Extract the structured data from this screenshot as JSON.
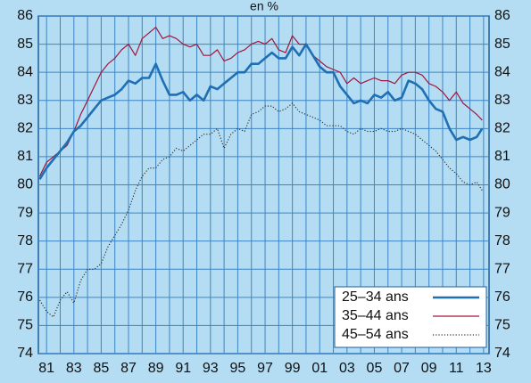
{
  "chart_data": {
    "type": "line",
    "subtitle": "en %",
    "x": [
      1980.5,
      1981,
      1981.5,
      1982,
      1982.5,
      1983,
      1983.5,
      1984,
      1984.5,
      1985,
      1985.5,
      1986,
      1986.5,
      1987,
      1987.5,
      1988,
      1988.5,
      1989,
      1989.5,
      1990,
      1990.5,
      1991,
      1991.5,
      1992,
      1992.5,
      1993,
      1993.5,
      1994,
      1994.5,
      1995,
      1995.5,
      1996,
      1996.5,
      1997,
      1997.5,
      1998,
      1998.5,
      1999,
      1999.5,
      2000,
      2000.5,
      2001,
      2001.5,
      2002,
      2002.5,
      2003,
      2003.5,
      2004,
      2004.5,
      2005,
      2005.5,
      2006,
      2006.5,
      2007,
      2007.5,
      2008,
      2008.5,
      2009,
      2009.5,
      2010,
      2010.5,
      2011,
      2011.5,
      2012,
      2012.5,
      2012.9
    ],
    "series": [
      {
        "name": "25–34 ans",
        "color": "#1f6fb5",
        "style": "solid-thick",
        "values": [
          80.2,
          80.6,
          80.9,
          81.2,
          81.5,
          81.9,
          82.1,
          82.4,
          82.7,
          83.0,
          83.1,
          83.2,
          83.4,
          83.7,
          83.6,
          83.8,
          83.8,
          84.3,
          83.7,
          83.2,
          83.2,
          83.3,
          83.0,
          83.2,
          83.0,
          83.5,
          83.4,
          83.6,
          83.8,
          84.0,
          84.0,
          84.3,
          84.3,
          84.5,
          84.7,
          84.5,
          84.5,
          84.9,
          84.6,
          85.0,
          84.6,
          84.2,
          84.0,
          84.0,
          83.5,
          83.2,
          82.9,
          83.0,
          82.9,
          83.2,
          83.1,
          83.3,
          83.0,
          83.1,
          83.7,
          83.6,
          83.4,
          83.0,
          82.7,
          82.6,
          82.0,
          81.6,
          81.7,
          81.6,
          81.7,
          82.0
        ]
      },
      {
        "name": "35–44 ans",
        "color": "#a0163c",
        "style": "solid",
        "values": [
          80.3,
          80.8,
          81.0,
          81.2,
          81.4,
          81.9,
          82.5,
          83.0,
          83.5,
          84.0,
          84.3,
          84.5,
          84.8,
          85.0,
          84.6,
          85.2,
          85.4,
          85.6,
          85.2,
          85.3,
          85.2,
          85.0,
          84.9,
          85.0,
          84.6,
          84.6,
          84.8,
          84.4,
          84.5,
          84.7,
          84.8,
          85.0,
          85.1,
          85.0,
          85.2,
          84.8,
          84.7,
          85.3,
          85.0,
          85.0,
          84.6,
          84.4,
          84.2,
          84.1,
          84.0,
          83.6,
          83.8,
          83.6,
          83.7,
          83.8,
          83.7,
          83.7,
          83.6,
          83.9,
          84.0,
          84.0,
          83.9,
          83.6,
          83.5,
          83.3,
          83.0,
          83.3,
          82.9,
          82.7,
          82.5,
          82.3
        ]
      },
      {
        "name": "45–54 ans",
        "color": "#333333",
        "style": "dotted",
        "values": [
          75.9,
          75.5,
          75.3,
          75.9,
          76.2,
          75.8,
          76.6,
          77.0,
          77.0,
          77.2,
          77.8,
          78.2,
          78.6,
          79.1,
          79.8,
          80.3,
          80.6,
          80.6,
          80.9,
          81.0,
          81.3,
          81.2,
          81.4,
          81.6,
          81.8,
          81.8,
          82.0,
          81.3,
          81.8,
          82.0,
          81.9,
          82.5,
          82.6,
          82.8,
          82.8,
          82.6,
          82.7,
          82.9,
          82.6,
          82.5,
          82.4,
          82.3,
          82.1,
          82.1,
          82.1,
          81.9,
          81.8,
          82.0,
          81.9,
          81.9,
          82.0,
          81.9,
          81.9,
          82.0,
          81.9,
          81.8,
          81.6,
          81.4,
          81.2,
          80.9,
          80.6,
          80.4,
          80.1,
          80.0,
          80.1,
          79.8
        ]
      }
    ],
    "xlim": [
      1980.4,
      2013.4
    ],
    "xticks": [
      {
        "value": 1981,
        "label": "81"
      },
      {
        "value": 1983,
        "label": "83"
      },
      {
        "value": 1985,
        "label": "85"
      },
      {
        "value": 1987,
        "label": "87"
      },
      {
        "value": 1989,
        "label": "89"
      },
      {
        "value": 1991,
        "label": "91"
      },
      {
        "value": 1993,
        "label": "93"
      },
      {
        "value": 1995,
        "label": "95"
      },
      {
        "value": 1997,
        "label": "97"
      },
      {
        "value": 1999,
        "label": "99"
      },
      {
        "value": 2001,
        "label": "01"
      },
      {
        "value": 2003,
        "label": "03"
      },
      {
        "value": 2005,
        "label": "05"
      },
      {
        "value": 2007,
        "label": "07"
      },
      {
        "value": 2009,
        "label": "09"
      },
      {
        "value": 2011,
        "label": "11"
      },
      {
        "value": 2013,
        "label": "13"
      }
    ],
    "xminor_ticks": [
      1982,
      1984,
      1986,
      1988,
      1990,
      1992,
      1994,
      1996,
      1998,
      2000,
      2002,
      2004,
      2006,
      2008,
      2010,
      2012
    ],
    "ylim": [
      74,
      86
    ],
    "yticks": [
      74,
      75,
      76,
      77,
      78,
      79,
      80,
      81,
      82,
      83,
      84,
      85,
      86
    ],
    "y_labels_both_sides": true,
    "grid": true,
    "legend": "lower-right"
  }
}
